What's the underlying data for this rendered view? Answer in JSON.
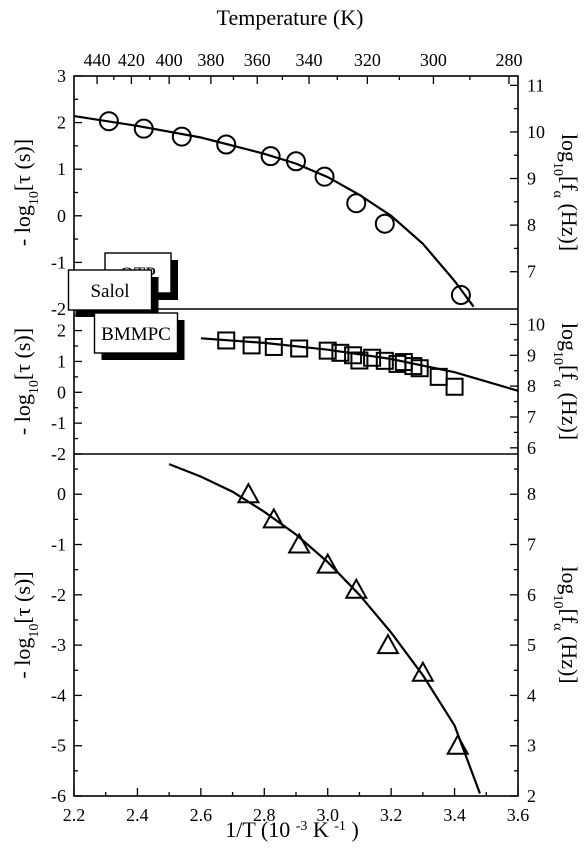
{
  "chart_data": {
    "type": "scatter",
    "x_axis": {
      "label_main": "1/T",
      "label_unit_open": "(10",
      "label_unit_exp": "-3",
      "label_unit_mid": " K",
      "label_unit_exp2": "-1",
      "label_unit_close": ")",
      "range": [
        2.2,
        3.6
      ],
      "ticks": [
        2.2,
        2.4,
        2.6,
        2.8,
        3.0,
        3.2,
        3.4,
        3.6
      ]
    },
    "top_axis": {
      "label": "Temperature  (K)",
      "ticks": [
        440,
        420,
        400,
        380,
        360,
        340,
        320,
        300,
        280
      ]
    },
    "panels": [
      {
        "label": "OTP",
        "left_axis": {
          "label_pre": "- log",
          "label_sub": "10",
          "label_post": "[τ  (s)]",
          "range": [
            -2,
            3
          ],
          "ticks": [
            -2,
            -1,
            0,
            1,
            2,
            3
          ]
        },
        "right_axis": {
          "label_pre": "log",
          "label_sub": "10",
          "label_mid": "[f",
          "label_sub2": "α",
          "label_post": " (Hz)]",
          "range": [
            6.2,
            11.2
          ],
          "ticks": [
            7,
            8,
            9,
            10,
            11
          ]
        },
        "marker": "circle",
        "points": {
          "x": [
            2.31,
            2.42,
            2.54,
            2.68,
            2.82,
            2.9,
            2.99,
            3.09,
            3.18,
            3.42
          ],
          "y": [
            2.03,
            1.87,
            1.7,
            1.53,
            1.28,
            1.17,
            0.84,
            0.27,
            -0.17,
            -1.7
          ]
        },
        "fit": {
          "x": [
            2.2,
            2.4,
            2.6,
            2.8,
            2.9,
            3.0,
            3.1,
            3.2,
            3.3,
            3.4,
            3.46
          ],
          "y": [
            2.14,
            1.93,
            1.68,
            1.33,
            1.12,
            0.83,
            0.45,
            0.0,
            -0.6,
            -1.4,
            -1.95
          ]
        }
      },
      {
        "label": "Salol",
        "left_axis": {
          "label_pre": "- log",
          "label_sub": "10",
          "label_post": "[τ  (s)]",
          "range": [
            -2,
            2.7
          ],
          "ticks": [
            -2,
            -1,
            0,
            1,
            2
          ]
        },
        "right_axis": {
          "label_pre": "log",
          "label_sub": "10",
          "label_mid": "[f",
          "label_sub2": "α",
          "label_post": " (Hz)]",
          "range": [
            5.8,
            10.5
          ],
          "ticks": [
            6,
            7,
            8,
            9,
            10
          ]
        },
        "marker": "square",
        "points": {
          "x": [
            2.68,
            2.76,
            2.83,
            2.91,
            3.0,
            3.04,
            3.08,
            3.1,
            3.14,
            3.18,
            3.22,
            3.24,
            3.27,
            3.29,
            3.35,
            3.4
          ],
          "y": [
            1.68,
            1.52,
            1.47,
            1.42,
            1.35,
            1.28,
            1.2,
            1.03,
            1.12,
            1.02,
            0.92,
            0.98,
            0.85,
            0.78,
            0.5,
            0.18
          ]
        },
        "fit": {
          "x": [
            2.6,
            2.8,
            3.0,
            3.2,
            3.4,
            3.6
          ],
          "y": [
            1.75,
            1.6,
            1.38,
            1.08,
            0.65,
            0.05
          ]
        }
      },
      {
        "label": "BMMPC",
        "left_axis": {
          "label_pre": "- log",
          "label_sub": "10",
          "label_post": "[τ  (s)]",
          "range": [
            -6,
            0.8
          ],
          "ticks": [
            -6,
            -5,
            -4,
            -3,
            -2,
            -1,
            0
          ]
        },
        "right_axis": {
          "label_pre": "log",
          "label_sub": "10",
          "label_mid": "[f",
          "label_sub2": "α",
          "label_post": " (Hz)]",
          "range": [
            2,
            8.8
          ],
          "ticks": [
            2,
            3,
            4,
            5,
            6,
            7,
            8
          ]
        },
        "marker": "triangle",
        "points": {
          "x": [
            2.75,
            2.83,
            2.91,
            3.0,
            3.09,
            3.19,
            3.3,
            3.41
          ],
          "y": [
            0.0,
            -0.5,
            -1.0,
            -1.4,
            -1.9,
            -3.0,
            -3.55,
            -5.0
          ]
        },
        "fit": {
          "x": [
            2.5,
            2.6,
            2.7,
            2.8,
            2.9,
            3.0,
            3.1,
            3.2,
            3.3,
            3.4,
            3.48
          ],
          "y": [
            0.6,
            0.35,
            0.05,
            -0.35,
            -0.8,
            -1.35,
            -2.0,
            -2.75,
            -3.6,
            -4.6,
            -5.95
          ]
        }
      }
    ]
  }
}
